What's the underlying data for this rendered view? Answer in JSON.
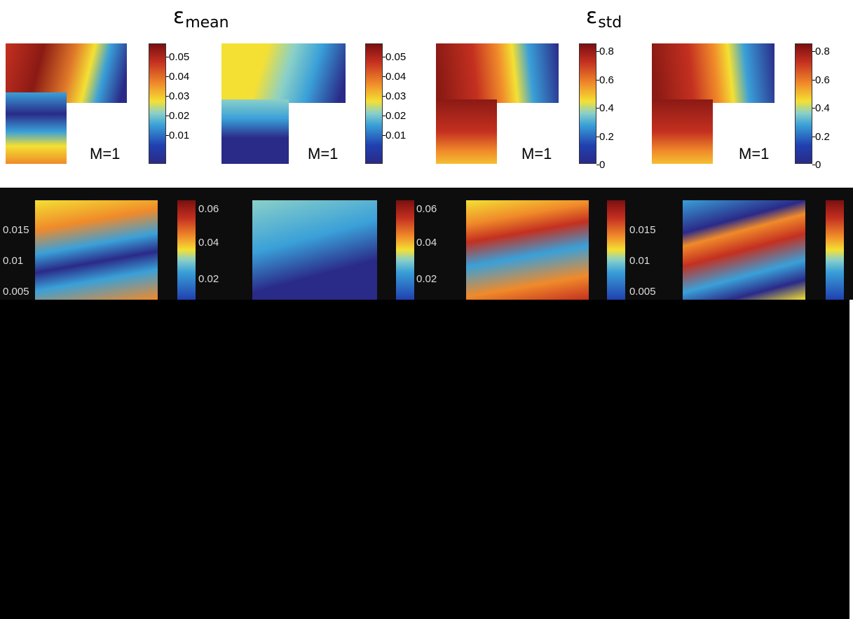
{
  "titles": {
    "left": {
      "main": "ε",
      "sub": "mean"
    },
    "right": {
      "main": "ε",
      "sub": "std"
    }
  },
  "panels": [
    {
      "label": "M=1",
      "colorbar_ticks": [
        "0.05",
        "0.04",
        "0.03",
        "0.02",
        "0.01"
      ]
    },
    {
      "label": "M=1",
      "colorbar_ticks": [
        "0.05",
        "0.04",
        "0.03",
        "0.02",
        "0.01"
      ]
    },
    {
      "label": "M=1",
      "colorbar_ticks": [
        "0.8",
        "0.6",
        "0.4",
        "0.2",
        "0"
      ]
    },
    {
      "label": "M=1",
      "colorbar_ticks": [
        "0.8",
        "0.6",
        "0.4",
        "0.2",
        "0"
      ]
    }
  ],
  "second_row_ticks": {
    "panel1": [
      "0.015",
      "0.01",
      "0.005"
    ],
    "panel2": [
      "0.06",
      "0.04",
      "0.02"
    ],
    "panel3": [
      "0.06",
      "0.04",
      "0.02"
    ],
    "panel4": [
      "0.015",
      "0.01",
      "0.005"
    ]
  },
  "colors": {
    "dark_red": "#7a0f0f",
    "red": "#c43020",
    "orange": "#f08a2a",
    "yellow": "#f4e033",
    "cyan": "#8ad0c8",
    "blue": "#3aa0d8",
    "dark_blue": "#2a2a88"
  }
}
